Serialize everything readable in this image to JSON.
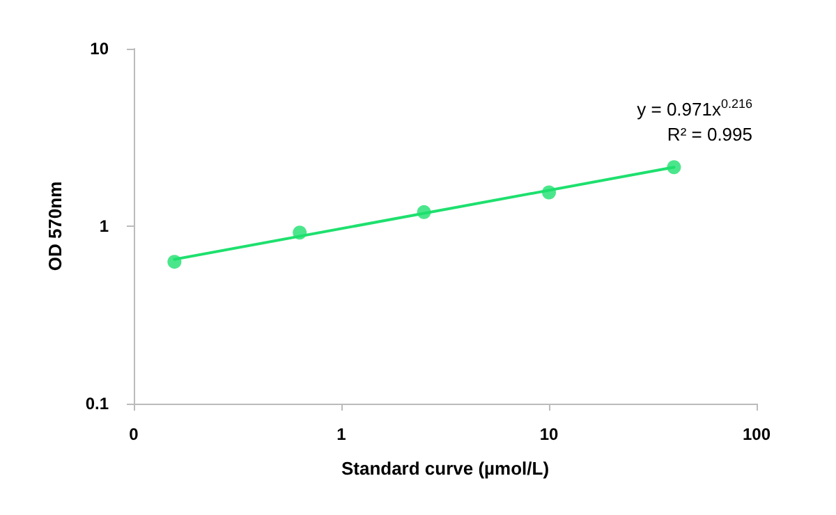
{
  "chart_data": {
    "type": "scatter",
    "xlabel": "Standard curve (µmol/L)",
    "ylabel": "OD 570nm",
    "log": "xy",
    "xlim": [
      0.1,
      100
    ],
    "xticks": [
      {
        "value": 0.1,
        "label": "0"
      },
      1,
      10,
      100
    ],
    "ylim": [
      0.1,
      10
    ],
    "yticks": [
      0.1,
      1,
      10
    ],
    "grid": false,
    "marker": "circle",
    "series": [
      {
        "color": "#1ee06e",
        "x": [
          0.157,
          0.63,
          2.5,
          10,
          40
        ],
        "values": [
          0.63,
          0.92,
          1.2,
          1.55,
          2.15
        ]
      },
      {
        "type": "line",
        "color": "#1ee06e",
        "line_style": "solid",
        "marker": "none",
        "x": [
          0.157,
          40
        ],
        "values": [
          0.65,
          2.15
        ]
      }
    ],
    "annotations": [
      "y = 0.971x$^{0.216}$",
      "R² = 0.995"
    ]
  }
}
